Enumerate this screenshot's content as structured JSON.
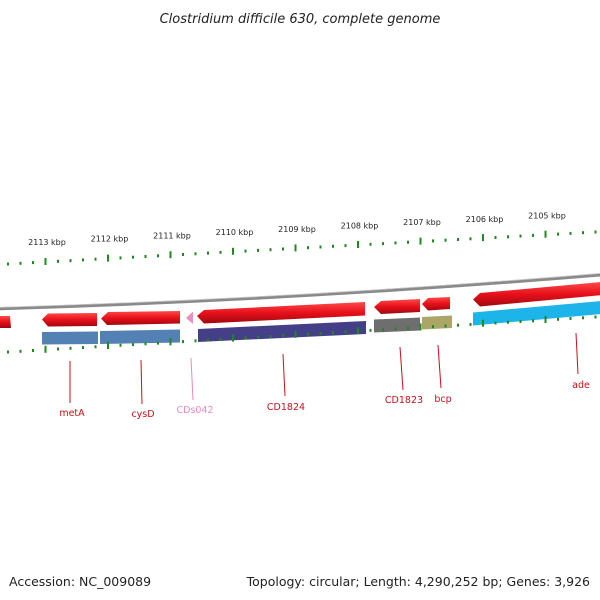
{
  "title": "Clostridium difficile 630, complete genome",
  "footer": {
    "accession": "Accession: NC_009089",
    "summary": "Topology: circular; Length: 4,290,252 bp; Genes: 3,926"
  },
  "colors": {
    "forward": "#e8101a",
    "backbone": "#888888",
    "tick": "#1e8a1e",
    "label_red": "#c8101a",
    "label_pink": "#e88ac0"
  },
  "ruler": {
    "unit": "kbp",
    "labels": [
      "2113 kbp",
      "2112 kbp",
      "2111 kbp",
      "2110 kbp",
      "2109 kbp",
      "2108 kbp",
      "2107 kbp",
      "2106 kbp",
      "2105 kbp"
    ]
  },
  "genes": [
    {
      "name": "metA",
      "color": "#4a7ab0",
      "label_color": "#c8101a"
    },
    {
      "name": "cysD",
      "color": "#4a7ab0",
      "label_color": "#c8101a"
    },
    {
      "name": "CDs042",
      "color": "#e88ac0",
      "label_color": "#e88ac0"
    },
    {
      "name": "CD1824",
      "color": "#3a3580",
      "label_color": "#c8101a"
    },
    {
      "name": "CD1823",
      "color": "#666666",
      "label_color": "#c8101a"
    },
    {
      "name": "bcp",
      "color": "#a8a060",
      "label_color": "#c8101a"
    },
    {
      "name": "ade",
      "color": "#10b0e8",
      "label_color": "#c8101a"
    }
  ]
}
